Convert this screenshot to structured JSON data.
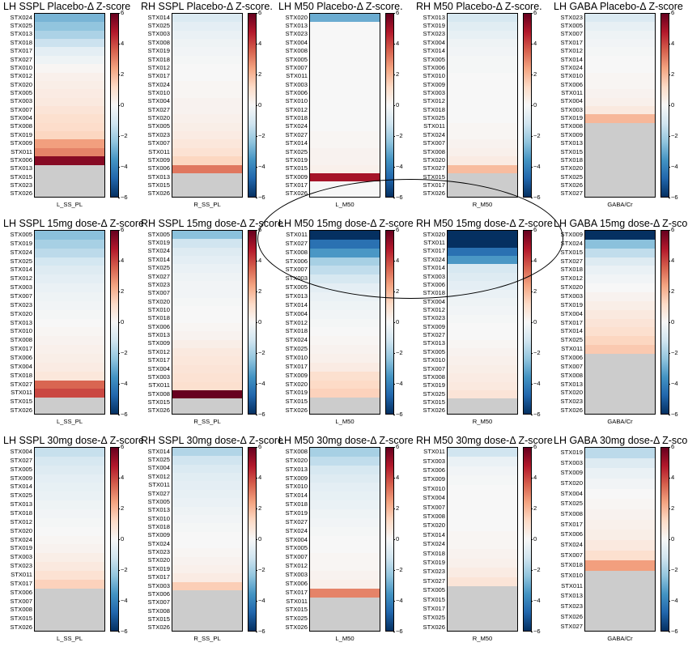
{
  "chart_data": [
    {
      "type": "heatmap",
      "title": "LH SSPL Placebo-Δ Z-score",
      "xlabel": "L_SS_PL",
      "clim": [
        -6,
        6
      ],
      "colorbar_ticks": [
        6,
        4,
        2,
        0,
        -2,
        -4,
        -6
      ],
      "rows": [
        "STX024",
        "STX025",
        "STX013",
        "STX018",
        "STX017",
        "STX027",
        "STX010",
        "STX012",
        "STX020",
        "STX005",
        "STX003",
        "STX007",
        "STX004",
        "STX008",
        "STX019",
        "STX009",
        "STX011",
        "STX006",
        "STX013",
        "STX015",
        "STX023",
        "STX026"
      ],
      "values": [
        -2.8,
        -2.4,
        -1.9,
        -1.3,
        -0.6,
        -0.3,
        0.1,
        0.3,
        0.4,
        0.5,
        0.6,
        0.8,
        1.0,
        1.1,
        1.3,
        2.5,
        3.0,
        5.5,
        null,
        null,
        null,
        null
      ]
    },
    {
      "type": "heatmap",
      "title": "RH SSPL Placebo-Δ Z-score.",
      "xlabel": "R_SS_PL",
      "clim": [
        -6,
        6
      ],
      "colorbar_ticks": [
        6,
        4,
        2,
        0,
        -2,
        -4,
        -6
      ],
      "rows": [
        "STX014",
        "STX025",
        "STX003",
        "STX008",
        "STX019",
        "STX018",
        "STX012",
        "STX017",
        "STX024",
        "STX010",
        "STX004",
        "STX027",
        "STX020",
        "STX005",
        "STX023",
        "STX007",
        "STX011",
        "STX009",
        "STX006",
        "STX013",
        "STX015",
        "STX026"
      ],
      "values": [
        -0.9,
        -0.6,
        -0.4,
        -0.3,
        -0.2,
        -0.1,
        0.0,
        0.0,
        0.1,
        0.1,
        0.2,
        0.2,
        0.3,
        0.4,
        0.5,
        0.7,
        0.9,
        1.3,
        3.2,
        null,
        null,
        null
      ]
    },
    {
      "type": "heatmap",
      "title": "LH M50 Placebo-Δ Z-score.",
      "xlabel": "L_M50",
      "clim": [
        -6,
        6
      ],
      "colorbar_ticks": [
        6,
        4,
        2,
        0,
        -2,
        -4,
        -6
      ],
      "rows": [
        "STX020",
        "STX013",
        "STX023",
        "STX004",
        "STX008",
        "STX005",
        "STX007",
        "STX011",
        "STX003",
        "STX006",
        "STX010",
        "STX012",
        "STX018",
        "STX024",
        "STX027",
        "STX014",
        "STX025",
        "STX019",
        "STX015",
        "STX009",
        "STX017",
        "STX026"
      ],
      "values": [
        -3.0,
        0.0,
        0.0,
        0.0,
        0.0,
        0.0,
        0.0,
        0.0,
        0.0,
        0.0,
        0.0,
        0.0,
        0.0,
        0.0,
        0.1,
        0.1,
        0.2,
        0.2,
        0.3,
        5.0,
        0.0,
        0.0
      ]
    },
    {
      "type": "heatmap",
      "title": "RH M50 Placebo-Δ Z-score.",
      "xlabel": "R_M50",
      "clim": [
        -6,
        6
      ],
      "colorbar_ticks": [
        6,
        4,
        2,
        0,
        -2,
        -4,
        -6
      ],
      "rows": [
        "STX013",
        "STX019",
        "STX023",
        "STX004",
        "STX014",
        "STX005",
        "STX006",
        "STX010",
        "STX009",
        "STX003",
        "STX012",
        "STX018",
        "STX025",
        "STX011",
        "STX024",
        "STX007",
        "STX008",
        "STX020",
        "STX027",
        "STX015",
        "STX017",
        "STX026"
      ],
      "values": [
        -1.0,
        -0.7,
        -0.5,
        -0.3,
        -0.2,
        -0.1,
        -0.1,
        0.0,
        0.0,
        0.0,
        0.0,
        0.0,
        0.0,
        0.1,
        0.1,
        0.2,
        0.3,
        0.5,
        1.9,
        null,
        null,
        null
      ]
    },
    {
      "type": "heatmap",
      "title": "LH GABA Placebo-Δ Z-score",
      "xlabel": "GABA/Cr",
      "clim": [
        -6,
        6
      ],
      "colorbar_ticks": [
        6,
        4,
        2,
        0,
        -2,
        -4,
        -6
      ],
      "rows": [
        "STX023",
        "STX005",
        "STX007",
        "STX017",
        "STX012",
        "STX014",
        "STX024",
        "STX010",
        "STX006",
        "STX011",
        "STX004",
        "STX003",
        "STX019",
        "STX008",
        "STX009",
        "STX013",
        "STX015",
        "STX018",
        "STX020",
        "STX025",
        "STX026",
        "STX027"
      ],
      "values": [
        -0.9,
        -0.5,
        -0.3,
        -0.2,
        -0.1,
        0.0,
        0.0,
        0.1,
        0.1,
        0.2,
        0.3,
        0.6,
        2.0,
        null,
        null,
        null,
        null,
        null,
        null,
        null,
        null,
        null
      ]
    },
    {
      "type": "heatmap",
      "title": "LH SSPL 15mg dose-Δ Z-score",
      "xlabel": "L_SS_PL",
      "clim": [
        -6,
        6
      ],
      "colorbar_ticks": [
        6,
        4,
        2,
        0,
        -2,
        -4,
        -6
      ],
      "rows": [
        "STX005",
        "STX019",
        "STX024",
        "STX025",
        "STX014",
        "STX012",
        "STX003",
        "STX007",
        "STX023",
        "STX020",
        "STX013",
        "STX010",
        "STX008",
        "STX017",
        "STX006",
        "STX004",
        "STX018",
        "STX027",
        "STX011",
        "STX015",
        "STX026"
      ],
      "values": [
        -2.5,
        -2.0,
        -1.6,
        -1.1,
        -0.8,
        -0.6,
        -0.4,
        -0.3,
        -0.2,
        -0.1,
        0.0,
        0.1,
        0.2,
        0.3,
        0.4,
        0.5,
        0.7,
        3.5,
        4.0,
        null,
        null
      ]
    },
    {
      "type": "heatmap",
      "title": "RH SSPL 15mg dose-Δ Z-score",
      "xlabel": "R_SS_PL",
      "clim": [
        -6,
        6
      ],
      "colorbar_ticks": [
        6,
        4,
        2,
        0,
        -2,
        -4,
        -6
      ],
      "rows": [
        "STX005",
        "STX019",
        "STX024",
        "STX014",
        "STX025",
        "STX027",
        "STX023",
        "STX007",
        "STX020",
        "STX010",
        "STX018",
        "STX006",
        "STX013",
        "STX009",
        "STX012",
        "STX017",
        "STX004",
        "STX003",
        "STX011",
        "STX008",
        "STX015",
        "STX026"
      ],
      "values": [
        -2.5,
        -1.2,
        -0.8,
        -0.6,
        -0.4,
        -0.3,
        -0.2,
        -0.2,
        -0.1,
        0.0,
        0.0,
        0.1,
        0.2,
        0.4,
        0.6,
        0.7,
        0.8,
        0.9,
        1.0,
        6.0,
        null,
        null
      ]
    },
    {
      "type": "heatmap",
      "title": "LH M50 15mg dose-Δ Z-score",
      "xlabel": "L_M50",
      "clim": [
        -6,
        6
      ],
      "colorbar_ticks": [
        6,
        4,
        2,
        0,
        -2,
        -4,
        -6
      ],
      "rows": [
        "STX011",
        "STX027",
        "STX008",
        "STX006",
        "STX007",
        "STX003",
        "STX005",
        "STX013",
        "STX014",
        "STX004",
        "STX012",
        "STX018",
        "STX024",
        "STX025",
        "STX010",
        "STX017",
        "STX009",
        "STX020",
        "STX019",
        "STX015",
        "STX026"
      ],
      "values": [
        -6.0,
        -4.5,
        -3.5,
        -2.0,
        -1.5,
        -1.0,
        -0.6,
        -0.4,
        -0.3,
        -0.2,
        -0.1,
        0.0,
        0.1,
        0.2,
        0.3,
        0.5,
        1.0,
        1.2,
        1.4,
        null,
        null
      ]
    },
    {
      "type": "heatmap",
      "title": "RH M50 15mg dose-Δ Z-score",
      "xlabel": "R_M50",
      "clim": [
        -6,
        6
      ],
      "colorbar_ticks": [
        6,
        4,
        2,
        0,
        -2,
        -4,
        -6
      ],
      "rows": [
        "STX020",
        "STX011",
        "STX017",
        "STX024",
        "STX014",
        "STX003",
        "STX006",
        "STX018",
        "STX004",
        "STX012",
        "STX023",
        "STX009",
        "STX027",
        "STX013",
        "STX005",
        "STX010",
        "STX007",
        "STX008",
        "STX019",
        "STX025",
        "STX015",
        "STX026"
      ],
      "values": [
        -6.0,
        -6.0,
        -4.5,
        -3.5,
        -1.0,
        -0.8,
        -0.6,
        -0.4,
        -0.3,
        -0.2,
        -0.1,
        0.0,
        0.0,
        0.1,
        0.2,
        0.3,
        0.4,
        0.5,
        0.6,
        0.8,
        null,
        null
      ]
    },
    {
      "type": "heatmap",
      "title": "LH GABA 15mg dose-Δ Z-score",
      "xlabel": "GABA/Cr",
      "clim": [
        -6,
        6
      ],
      "colorbar_ticks": [
        6,
        4,
        2,
        0,
        -2,
        -4,
        -6
      ],
      "rows": [
        "STX009",
        "STX024",
        "STX015",
        "STX027",
        "STX018",
        "STX012",
        "STX020",
        "STX003",
        "STX019",
        "STX004",
        "STX017",
        "STX014",
        "STX025",
        "STX011",
        "STX006",
        "STX007",
        "STX008",
        "STX013",
        "STX020",
        "STX023",
        "STX026"
      ],
      "values": [
        -6.0,
        -2.5,
        -1.5,
        -0.8,
        -0.4,
        -0.2,
        0.0,
        0.2,
        0.4,
        0.6,
        0.8,
        1.0,
        1.3,
        1.6,
        null,
        null,
        null,
        null,
        null,
        null,
        null
      ]
    },
    {
      "type": "heatmap",
      "title": "LH SSPL 30mg dose-Δ Z-score",
      "xlabel": "L_SS_PL",
      "clim": [
        -6,
        6
      ],
      "colorbar_ticks": [
        6,
        4,
        2,
        0,
        -2,
        -4,
        -6
      ],
      "rows": [
        "STX004",
        "STX027",
        "STX005",
        "STX009",
        "STX014",
        "STX025",
        "STX013",
        "STX018",
        "STX012",
        "STX020",
        "STX024",
        "STX019",
        "STX003",
        "STX023",
        "STX011",
        "STX017",
        "STX006",
        "STX007",
        "STX008",
        "STX015",
        "STX026"
      ],
      "values": [
        -1.4,
        -1.0,
        -0.8,
        -0.6,
        -0.5,
        -0.4,
        -0.3,
        -0.2,
        -0.1,
        0.0,
        0.1,
        0.2,
        0.4,
        0.6,
        0.9,
        1.4,
        null,
        null,
        null,
        null,
        null
      ]
    },
    {
      "type": "heatmap",
      "title": "RH SSPL 30mg dose-Δ Z-score",
      "xlabel": "R_SS_PL",
      "clim": [
        -6,
        6
      ],
      "colorbar_ticks": [
        6,
        4,
        2,
        0,
        -2,
        -4,
        -6
      ],
      "rows": [
        "STX014",
        "STX025",
        "STX004",
        "STX012",
        "STX011",
        "STX027",
        "STX005",
        "STX013",
        "STX010",
        "STX018",
        "STX009",
        "STX024",
        "STX023",
        "STX020",
        "STX019",
        "STX017",
        "STX003",
        "STX006",
        "STX007",
        "STX008",
        "STX015",
        "STX026"
      ],
      "values": [
        -1.8,
        -1.2,
        -0.9,
        -0.7,
        -0.6,
        -0.5,
        -0.4,
        -0.3,
        -0.2,
        -0.1,
        0.0,
        0.0,
        0.1,
        0.2,
        0.3,
        0.5,
        1.5,
        null,
        null,
        null,
        null,
        null
      ]
    },
    {
      "type": "heatmap",
      "title": "LH M50 30mg dose-Δ Z-score",
      "xlabel": "L_M50",
      "clim": [
        -6,
        6
      ],
      "colorbar_ticks": [
        6,
        4,
        2,
        0,
        -2,
        -4,
        -6
      ],
      "rows": [
        "STX008",
        "STX020",
        "STX013",
        "STX009",
        "STX010",
        "STX014",
        "STX018",
        "STX019",
        "STX027",
        "STX024",
        "STX004",
        "STX005",
        "STX007",
        "STX012",
        "STX003",
        "STX006",
        "STX017",
        "STX011",
        "STX015",
        "STX025",
        "STX026"
      ],
      "values": [
        -2.0,
        -1.5,
        -1.0,
        -0.8,
        -0.6,
        -0.5,
        -0.4,
        -0.3,
        -0.2,
        -0.1,
        0.0,
        0.0,
        0.1,
        0.1,
        0.2,
        0.3,
        3.0,
        null,
        null,
        null,
        null
      ]
    },
    {
      "type": "heatmap",
      "title": "RH M50 30mg dose-Δ Z-score",
      "xlabel": "R_M50",
      "clim": [
        -6,
        6
      ],
      "colorbar_ticks": [
        6,
        4,
        2,
        0,
        -2,
        -4,
        -6
      ],
      "rows": [
        "STX011",
        "STX003",
        "STX006",
        "STX009",
        "STX010",
        "STX004",
        "STX007",
        "STX008",
        "STX020",
        "STX014",
        "STX024",
        "STX018",
        "STX019",
        "STX023",
        "STX027",
        "STX005",
        "STX015",
        "STX017",
        "STX025",
        "STX026"
      ],
      "values": [
        -1.2,
        -0.4,
        -0.2,
        -0.1,
        0.0,
        0.0,
        0.0,
        0.0,
        0.0,
        0.1,
        0.1,
        0.2,
        0.3,
        0.5,
        0.8,
        null,
        null,
        null,
        null,
        null
      ]
    },
    {
      "type": "heatmap",
      "title": "LH GABA 30mg dose-Δ Z-score",
      "xlabel": "GABA/Cr",
      "clim": [
        -6,
        6
      ],
      "colorbar_ticks": [
        6,
        4,
        2,
        0,
        -2,
        -4,
        -6
      ],
      "rows": [
        "STX019",
        "STX003",
        "STX009",
        "STX020",
        "STX004",
        "STX025",
        "STX008",
        "STX017",
        "STX006",
        "STX024",
        "STX007",
        "STX018",
        "STX010",
        "STX011",
        "STX013",
        "STX023",
        "STX026",
        "STX027"
      ],
      "values": [
        -1.6,
        -0.8,
        -0.4,
        -0.2,
        0.0,
        0.1,
        0.2,
        0.3,
        0.4,
        0.6,
        1.0,
        2.5,
        null,
        null,
        null,
        null,
        null,
        null
      ]
    }
  ]
}
